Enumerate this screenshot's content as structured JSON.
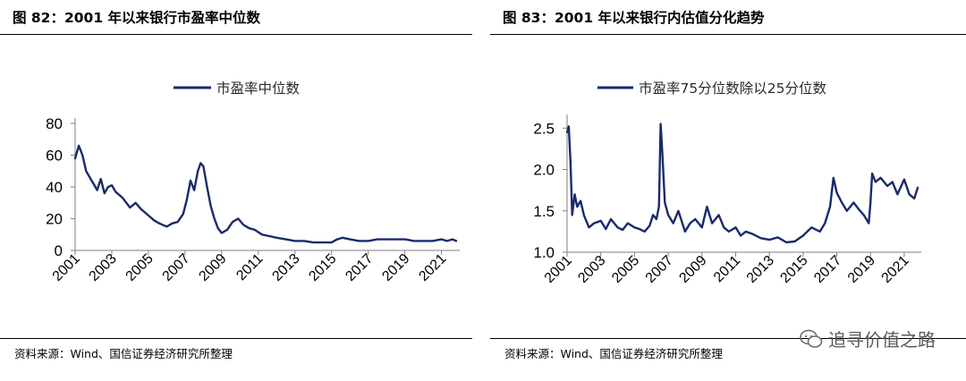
{
  "colors": {
    "series": "#1b2a6b",
    "axis": "#7f7f7f",
    "rule": "#000000"
  },
  "panels": [
    {
      "title": "图 82：2001 年以来银行市盈率中位数",
      "source": "资料来源：Wind、国信证券经济研究所整理",
      "legend": "市盈率中位数",
      "y_ticks": [
        "0",
        "20",
        "40",
        "60",
        "80"
      ],
      "x_ticks": [
        "2001",
        "2003",
        "2005",
        "2007",
        "2009",
        "2011",
        "2013",
        "2015",
        "2017",
        "2019",
        "2021"
      ]
    },
    {
      "title": "图 83：2001 年以来银行内估值分化趋势",
      "source": "资料来源：Wind、国信证券经济研究所整理",
      "legend": "市盈率75分位数除以25分位数",
      "y_ticks": [
        "1.0",
        "1.5",
        "2.0",
        "2.5"
      ],
      "x_ticks": [
        "2001",
        "2003",
        "2005",
        "2007",
        "2009",
        "2011",
        "2013",
        "2015",
        "2017",
        "2019",
        "2021"
      ]
    }
  ],
  "watermark": {
    "text": "追寻价值之路",
    "icon": "wechat-icon"
  },
  "chart_data": [
    {
      "type": "line",
      "title": "",
      "series": [
        {
          "name": "市盈率中位数",
          "x": [
            2001.0,
            2001.2,
            2001.4,
            2001.6,
            2001.8,
            2002.0,
            2002.2,
            2002.4,
            2002.6,
            2002.8,
            2003.0,
            2003.2,
            2003.4,
            2003.6,
            2003.8,
            2004.0,
            2004.3,
            2004.6,
            2005.0,
            2005.3,
            2005.6,
            2006.0,
            2006.3,
            2006.6,
            2006.9,
            2007.1,
            2007.3,
            2007.5,
            2007.7,
            2007.85,
            2008.0,
            2008.2,
            2008.4,
            2008.6,
            2008.8,
            2009.0,
            2009.3,
            2009.6,
            2009.9,
            2010.2,
            2010.5,
            2010.8,
            2011.2,
            2011.6,
            2012.0,
            2012.5,
            2013.0,
            2013.5,
            2014.0,
            2014.5,
            2015.0,
            2015.3,
            2015.6,
            2016.0,
            2016.5,
            2017.0,
            2017.5,
            2018.0,
            2018.5,
            2019.0,
            2019.5,
            2020.0,
            2020.5,
            2021.0,
            2021.3,
            2021.6,
            2021.8
          ],
          "values": [
            58,
            66,
            60,
            50,
            46,
            42,
            38,
            45,
            36,
            40,
            41,
            37,
            35,
            33,
            30,
            27,
            30,
            26,
            22,
            19,
            17,
            15,
            17,
            18,
            23,
            32,
            44,
            38,
            50,
            55,
            53,
            40,
            28,
            20,
            14,
            11,
            13,
            18,
            20,
            16,
            14,
            13,
            10,
            9,
            8,
            7,
            6,
            6,
            5,
            5,
            5,
            7,
            8,
            7,
            6,
            6,
            7,
            7,
            7,
            7,
            6,
            6,
            6,
            7,
            6,
            7,
            6
          ]
        }
      ],
      "xlim": [
        2001,
        2021.8
      ],
      "ylim": [
        0,
        80
      ]
    },
    {
      "type": "line",
      "title": "",
      "series": [
        {
          "name": "市盈率75分位数除以25分位数",
          "x": [
            2001.0,
            2001.1,
            2001.2,
            2001.3,
            2001.45,
            2001.6,
            2001.8,
            2002.0,
            2002.3,
            2002.6,
            2003.0,
            2003.3,
            2003.6,
            2004.0,
            2004.3,
            2004.6,
            2005.0,
            2005.3,
            2005.6,
            2005.9,
            2006.1,
            2006.3,
            2006.45,
            2006.55,
            2006.65,
            2006.8,
            2007.0,
            2007.3,
            2007.6,
            2008.0,
            2008.3,
            2008.6,
            2009.0,
            2009.3,
            2009.6,
            2010.0,
            2010.3,
            2010.6,
            2011.0,
            2011.3,
            2011.6,
            2012.0,
            2012.5,
            2013.0,
            2013.5,
            2014.0,
            2014.5,
            2015.0,
            2015.5,
            2016.0,
            2016.3,
            2016.6,
            2016.8,
            2017.0,
            2017.3,
            2017.6,
            2018.0,
            2018.3,
            2018.6,
            2018.9,
            2019.0,
            2019.1,
            2019.3,
            2019.6,
            2020.0,
            2020.3,
            2020.6,
            2021.0,
            2021.3,
            2021.6,
            2021.8
          ],
          "values": [
            2.45,
            2.52,
            2.1,
            1.45,
            1.7,
            1.55,
            1.62,
            1.45,
            1.3,
            1.35,
            1.38,
            1.28,
            1.4,
            1.3,
            1.27,
            1.35,
            1.3,
            1.28,
            1.25,
            1.32,
            1.45,
            1.4,
            1.55,
            2.55,
            2.2,
            1.6,
            1.45,
            1.35,
            1.5,
            1.25,
            1.35,
            1.4,
            1.3,
            1.55,
            1.35,
            1.45,
            1.3,
            1.25,
            1.3,
            1.2,
            1.25,
            1.22,
            1.17,
            1.15,
            1.18,
            1.12,
            1.13,
            1.2,
            1.3,
            1.25,
            1.35,
            1.55,
            1.9,
            1.72,
            1.6,
            1.5,
            1.6,
            1.52,
            1.45,
            1.35,
            1.6,
            1.95,
            1.85,
            1.9,
            1.8,
            1.85,
            1.7,
            1.88,
            1.7,
            1.65,
            1.78
          ]
        }
      ],
      "xlim": [
        2001,
        2021.8
      ],
      "ylim": [
        1.0,
        2.6
      ]
    }
  ]
}
